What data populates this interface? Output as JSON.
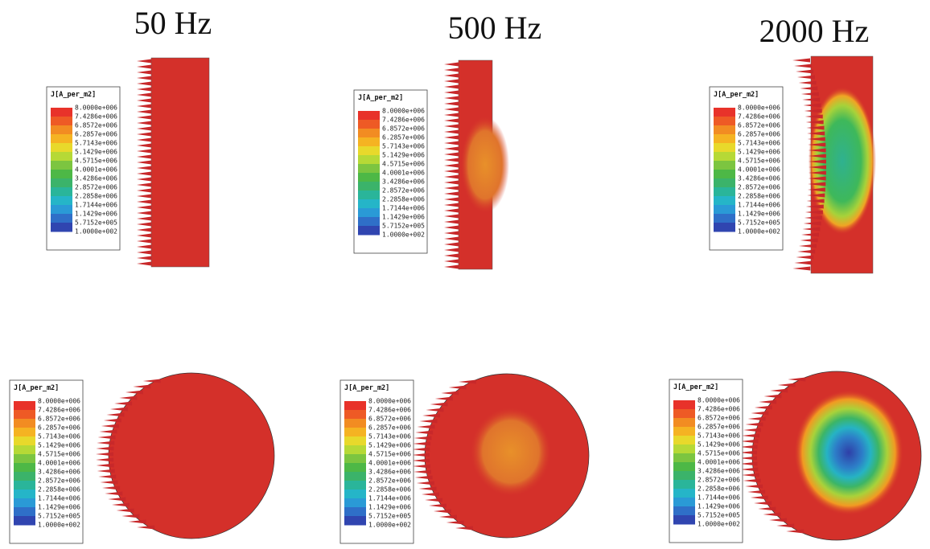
{
  "columns": [
    {
      "title": "50 Hz"
    },
    {
      "title": "500 Hz"
    },
    {
      "title": "2000 Hz"
    }
  ],
  "legend": {
    "title": "J[A_per_m2]",
    "labels": [
      "8.0000e+006",
      "7.4286e+006",
      "6.8572e+006",
      "6.2857e+006",
      "5.7143e+006",
      "5.1429e+006",
      "4.5715e+006",
      "4.0001e+006",
      "3.4286e+006",
      "2.8572e+006",
      "2.2858e+006",
      "1.7144e+006",
      "1.1429e+006",
      "5.7152e+005",
      "1.0000e+002"
    ]
  }
}
